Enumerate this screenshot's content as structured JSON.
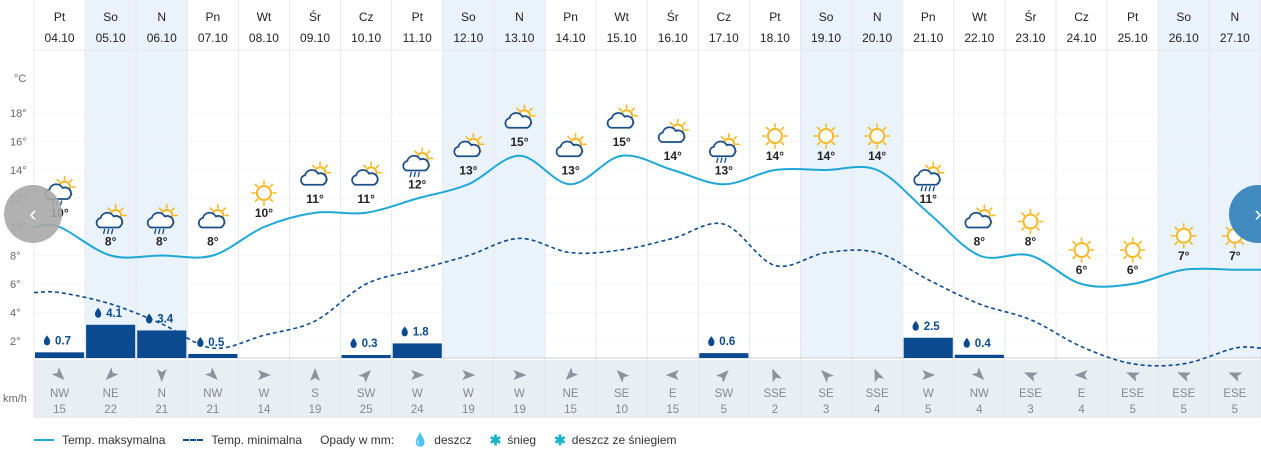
{
  "chart_data": {
    "type": "line",
    "title": "",
    "ylabel": "°C",
    "yticks": [
      "2°",
      "4°",
      "6°",
      "8°",
      "10°",
      "12°",
      "14°",
      "16°",
      "18°"
    ],
    "ylim": [
      0,
      20
    ],
    "days": [
      {
        "dow": "Pt",
        "date": "04.10",
        "max": 10,
        "min": 5.4,
        "icon": "sun-cloud-rain-icon",
        "rain": 0.7,
        "wind_dir": "NW",
        "wind": 15,
        "weekend": false
      },
      {
        "dow": "So",
        "date": "05.10",
        "max": 8,
        "min": 4.6,
        "icon": "sun-cloud-rain-icon",
        "rain": 4.1,
        "wind_dir": "NE",
        "wind": 22,
        "weekend": true
      },
      {
        "dow": "N",
        "date": "06.10",
        "max": 8,
        "min": 3.2,
        "icon": "sun-cloud-rain-icon",
        "rain": 3.4,
        "wind_dir": "N",
        "wind": 21,
        "weekend": true
      },
      {
        "dow": "Pn",
        "date": "07.10",
        "max": 8,
        "min": 1.5,
        "icon": "sun-cloud-icon",
        "rain": 0.5,
        "wind_dir": "NW",
        "wind": 21,
        "weekend": false
      },
      {
        "dow": "Wt",
        "date": "08.10",
        "max": 10,
        "min": 2.4,
        "icon": "sun-icon",
        "rain": 0,
        "wind_dir": "W",
        "wind": 14,
        "weekend": false
      },
      {
        "dow": "Śr",
        "date": "09.10",
        "max": 11,
        "min": 3.4,
        "icon": "sun-cloud-icon",
        "rain": 0,
        "wind_dir": "S",
        "wind": 19,
        "weekend": false
      },
      {
        "dow": "Cz",
        "date": "10.10",
        "max": 11,
        "min": 6.0,
        "icon": "sun-cloud-icon",
        "rain": 0.3,
        "wind_dir": "SW",
        "wind": 25,
        "weekend": false
      },
      {
        "dow": "Pt",
        "date": "11.10",
        "max": 12,
        "min": 7.0,
        "icon": "sun-cloud-rain-icon",
        "rain": 1.8,
        "wind_dir": "W",
        "wind": 24,
        "weekend": false
      },
      {
        "dow": "So",
        "date": "12.10",
        "max": 13,
        "min": 8.0,
        "icon": "sun-cloud-icon",
        "rain": 0,
        "wind_dir": "W",
        "wind": 19,
        "weekend": true
      },
      {
        "dow": "N",
        "date": "13.10",
        "max": 15,
        "min": 9.2,
        "icon": "sun-cloud-icon",
        "rain": 0,
        "wind_dir": "W",
        "wind": 19,
        "weekend": true
      },
      {
        "dow": "Pn",
        "date": "14.10",
        "max": 13,
        "min": 8.2,
        "icon": "sun-cloud-icon",
        "rain": 0,
        "wind_dir": "NE",
        "wind": 15,
        "weekend": false
      },
      {
        "dow": "Wt",
        "date": "15.10",
        "max": 15,
        "min": 8.4,
        "icon": "sun-cloud-icon",
        "rain": 0,
        "wind_dir": "SE",
        "wind": 10,
        "weekend": false
      },
      {
        "dow": "Śr",
        "date": "16.10",
        "max": 14,
        "min": 9.2,
        "icon": "sun-cloud-icon",
        "rain": 0,
        "wind_dir": "E",
        "wind": 15,
        "weekend": false
      },
      {
        "dow": "Cz",
        "date": "17.10",
        "max": 13,
        "min": 10.2,
        "icon": "sun-cloud-rain-icon",
        "rain": 0.6,
        "wind_dir": "SW",
        "wind": 5,
        "weekend": false
      },
      {
        "dow": "Pt",
        "date": "18.10",
        "max": 14,
        "min": 7.3,
        "icon": "sun-icon",
        "rain": 0,
        "wind_dir": "SSE",
        "wind": 2,
        "weekend": false
      },
      {
        "dow": "So",
        "date": "19.10",
        "max": 14,
        "min": 8.2,
        "icon": "sun-icon",
        "rain": 0,
        "wind_dir": "SE",
        "wind": 3,
        "weekend": true
      },
      {
        "dow": "N",
        "date": "20.10",
        "max": 14,
        "min": 8.2,
        "icon": "sun-icon",
        "rain": 0,
        "wind_dir": "SSE",
        "wind": 4,
        "weekend": true
      },
      {
        "dow": "Pn",
        "date": "21.10",
        "max": 11,
        "min": 6.3,
        "icon": "sun-cloud-shower-icon",
        "rain": 2.5,
        "wind_dir": "W",
        "wind": 5,
        "weekend": false
      },
      {
        "dow": "Wt",
        "date": "22.10",
        "max": 8,
        "min": 4.6,
        "icon": "sun-cloud-icon",
        "rain": 0.4,
        "wind_dir": "NW",
        "wind": 4,
        "weekend": false
      },
      {
        "dow": "Śr",
        "date": "23.10",
        "max": 8,
        "min": 3.5,
        "icon": "sun-icon",
        "rain": 0,
        "wind_dir": "ESE",
        "wind": 3,
        "weekend": false
      },
      {
        "dow": "Cz",
        "date": "24.10",
        "max": 6,
        "min": 1.6,
        "icon": "sun-icon",
        "rain": 0,
        "wind_dir": "E",
        "wind": 4,
        "weekend": false
      },
      {
        "dow": "Pt",
        "date": "25.10",
        "max": 6,
        "min": 0.4,
        "icon": "sun-icon",
        "rain": 0,
        "wind_dir": "ESE",
        "wind": 5,
        "weekend": false
      },
      {
        "dow": "So",
        "date": "26.10",
        "max": 7,
        "min": 0.4,
        "icon": "sun-icon",
        "rain": 0,
        "wind_dir": "ESE",
        "wind": 5,
        "weekend": true
      },
      {
        "dow": "N",
        "date": "27.10",
        "max": 7,
        "min": 1.5,
        "icon": "sun-icon",
        "rain": 0,
        "wind_dir": "ESE",
        "wind": 5,
        "weekend": true
      }
    ],
    "max_label_overrides": {},
    "wind_unit": "km/h",
    "legend": {
      "max": "Temp. maksymalna",
      "min": "Temp. minimalna",
      "precip_title": "Opady w mm:",
      "rain": "deszcz",
      "snow": "śnieg",
      "sleet": "deszcz ze śniegiem"
    },
    "colors": {
      "max_line": "#1fa7d6",
      "min_line": "#0b4a8e",
      "weekend": "#eaf2fb",
      "precip_bar": "#0b4a8e",
      "sun": "#f6b722",
      "cloud": "#1c4f88"
    }
  }
}
